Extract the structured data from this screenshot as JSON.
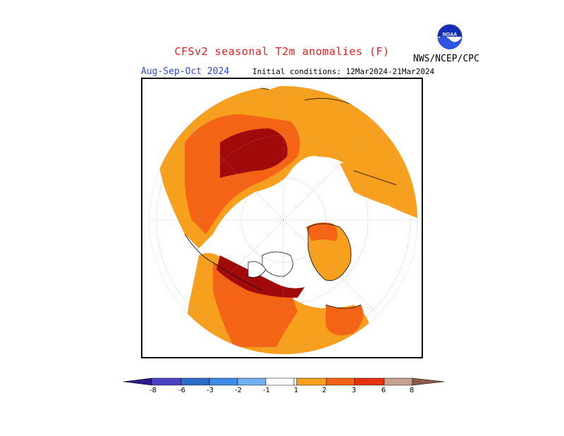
{
  "header": {
    "title": "CFSv2 seasonal T2m anomalies (F)",
    "season": "Aug-Sep-Oct 2024",
    "initial_conditions": "Initial conditions: 12Mar2024-21Mar2024",
    "agency": "NWS/NCEP/CPC",
    "logo_text": "NOAA"
  },
  "colors": {
    "title": "#e02020",
    "season": "#2a4bd7",
    "neg_extreme": "#2e1a8c",
    "neg_8": "#4a43c8",
    "neg_6": "#2d6cc8",
    "neg_3": "#3d8ce8",
    "neg_2": "#6fb0f0",
    "neg_1": "#a9d3f5",
    "neutral": "#ffffff",
    "pos_1": "#f7a01d",
    "pos_2": "#f46414",
    "pos_3": "#e7320f",
    "pos_6": "#a00a0a",
    "pos_8": "#c8a090",
    "pos_extreme": "#8c5a4a"
  },
  "colorbar": {
    "tick_labels": [
      "-8",
      "-6",
      "-3",
      "-2",
      "-1",
      "1",
      "2",
      "3",
      "6",
      "8"
    ]
  },
  "map": {
    "projection": "north-polar-stereographic",
    "legend_units": "F"
  }
}
